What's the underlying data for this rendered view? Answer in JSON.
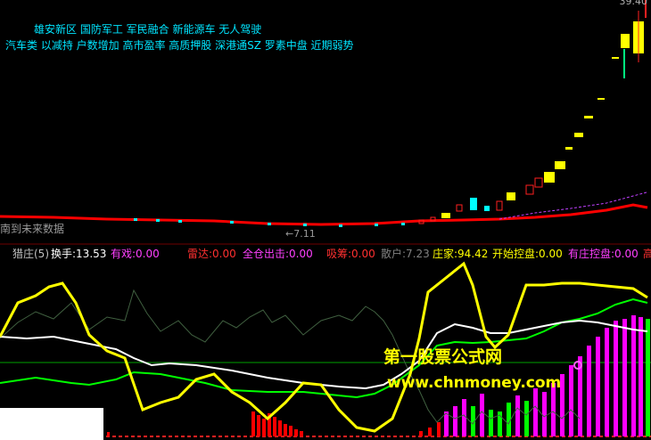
{
  "tags": {
    "line1": "雄安新区 国防军工 军民融合 新能源车 无人驾驶",
    "line2": "汽车类 以减持 户数增加 高市盈率 高质押股 深港通SZ 罗素中盘 近期弱势"
  },
  "price_high_label": "39.40",
  "future_label": "南到未来数据",
  "low_price_label": "←7.11",
  "indicator": {
    "name": "猎庄(5)",
    "items": [
      {
        "label": "换手:",
        "value": "13.53",
        "color": "#ffffff"
      },
      {
        "label": "有戏:",
        "value": "0.00",
        "color": "#ff40ff"
      },
      {
        "label": "雷达:",
        "value": "0.00",
        "color": "#ff3030"
      },
      {
        "label": "全仓出击:",
        "value": "0.00",
        "color": "#ff40ff"
      },
      {
        "label": "吸筹:",
        "value": "0.00",
        "color": "#ff3030"
      },
      {
        "label": "散户:",
        "value": "7.23",
        "color": "#808080"
      },
      {
        "label": "庄家:",
        "value": "94.42",
        "color": "#ffff00"
      },
      {
        "label": "开始控盘:",
        "value": "0.00",
        "color": "#ffff00"
      },
      {
        "label": "有庄控盘:",
        "value": "0.00",
        "color": "#ff40ff"
      },
      {
        "label": "高",
        "value": "",
        "color": "#ff3030"
      }
    ]
  },
  "watermark": {
    "cn": "第一股票公式网",
    "url": "www.chnmoney.com"
  },
  "colors": {
    "candle_up": "#ff2020",
    "candle_down": "#00ffff",
    "candle_yellow": "#ffff00",
    "ma_red": "#ff0000",
    "ma_purple": "#c040ff",
    "zhuangjia_line": "#ffff00",
    "white_line": "#ffffff",
    "green_line": "#00ff00",
    "dark_green_line": "#406040",
    "magenta_bar": "#ff00ff",
    "green_bar": "#00ff00",
    "red_bar": "#ff0000"
  }
}
